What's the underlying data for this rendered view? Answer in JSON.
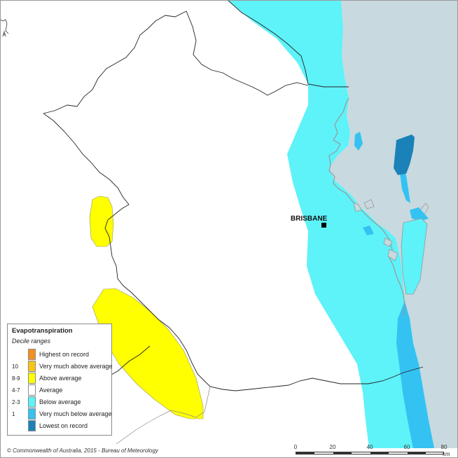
{
  "map": {
    "city_label": "BRISBANE",
    "credit": "© Commonwealth of Australia, 2015 - Bureau of Meteorology",
    "colors": {
      "ocean": "#c8d9df",
      "below_average": "#5ef2f9",
      "very_much_below": "#34c2f2",
      "lowest": "#1a82b8",
      "above_average": "#ffff00",
      "boundary": "#222222",
      "coast_gray": "#999999"
    }
  },
  "legend": {
    "title": "Evapotranspiration",
    "subtitle": "Decile ranges",
    "items": [
      {
        "code": "",
        "label": "Highest on record",
        "color": "#f5901e"
      },
      {
        "code": "10",
        "label": "Very much above average",
        "color": "#f9c414"
      },
      {
        "code": "8-9",
        "label": "Above average",
        "color": "#ffff00"
      },
      {
        "code": "4-7",
        "label": "Average",
        "color": "#ffffff"
      },
      {
        "code": "2-3",
        "label": "Below average",
        "color": "#5ef2f9"
      },
      {
        "code": "1",
        "label": "Very much below average",
        "color": "#34c2f2"
      },
      {
        "code": "",
        "label": "Lowest on record",
        "color": "#1a82b8"
      }
    ]
  },
  "scale_bar": {
    "ticks": [
      "0",
      "20",
      "40",
      "60",
      "80"
    ],
    "unit": "km"
  }
}
